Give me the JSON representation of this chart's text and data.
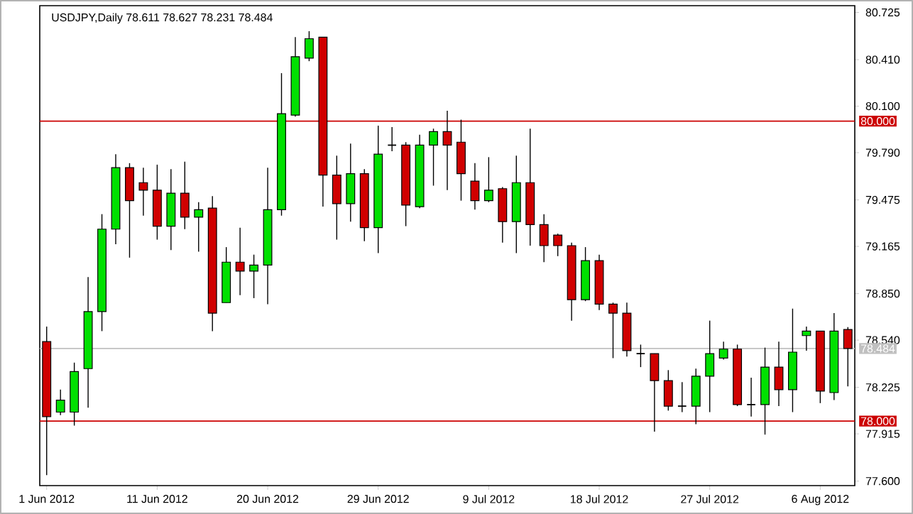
{
  "chart_data": {
    "type": "candlestick",
    "title": "USDJPY,Daily 78.611 78.627 78.231 78.484",
    "categories": [
      "1 Jun 2012",
      null,
      null,
      null,
      null,
      null,
      null,
      null,
      "11 Jun 2012",
      null,
      null,
      null,
      null,
      null,
      null,
      null,
      "20 Jun 2012",
      null,
      null,
      null,
      null,
      null,
      null,
      null,
      "29 Jun 2012",
      null,
      null,
      null,
      null,
      null,
      null,
      null,
      "9 Jul 2012",
      null,
      null,
      null,
      null,
      null,
      null,
      null,
      "18 Jul 2012",
      null,
      null,
      null,
      null,
      null,
      null,
      null,
      "27 Jul 2012",
      null,
      null,
      null,
      null,
      null,
      null,
      null,
      "6 Aug 2012",
      null,
      null
    ],
    "ohlc": [
      [
        78.53,
        78.63,
        77.64,
        78.03
      ],
      [
        78.06,
        78.21,
        78.04,
        78.14
      ],
      [
        78.06,
        78.39,
        77.97,
        78.33
      ],
      [
        78.35,
        78.96,
        78.09,
        78.73
      ],
      [
        78.73,
        79.38,
        78.6,
        79.28
      ],
      [
        79.28,
        79.78,
        79.18,
        79.69
      ],
      [
        79.69,
        79.72,
        79.09,
        79.47
      ],
      [
        79.59,
        79.69,
        79.37,
        79.54
      ],
      [
        79.54,
        79.71,
        79.21,
        79.3
      ],
      [
        79.3,
        79.68,
        79.14,
        79.52
      ],
      [
        79.52,
        79.73,
        79.28,
        79.36
      ],
      [
        79.36,
        79.46,
        79.13,
        79.41
      ],
      [
        79.42,
        79.5,
        78.6,
        78.72
      ],
      [
        78.79,
        79.16,
        78.79,
        79.06
      ],
      [
        79.06,
        79.29,
        78.84,
        79.0
      ],
      [
        79.0,
        79.11,
        78.82,
        79.04
      ],
      [
        79.04,
        79.69,
        78.78,
        79.41
      ],
      [
        79.41,
        80.32,
        79.37,
        80.05
      ],
      [
        80.04,
        80.56,
        80.03,
        80.43
      ],
      [
        80.42,
        80.6,
        80.4,
        80.55
      ],
      [
        80.56,
        80.56,
        79.43,
        79.64
      ],
      [
        79.64,
        79.77,
        79.21,
        79.45
      ],
      [
        79.45,
        79.85,
        79.33,
        79.65
      ],
      [
        79.65,
        79.68,
        79.2,
        79.29
      ],
      [
        79.29,
        79.97,
        79.12,
        79.78
      ],
      [
        79.84,
        79.96,
        79.8,
        79.84
      ],
      [
        79.84,
        79.86,
        79.3,
        79.44
      ],
      [
        79.43,
        79.91,
        79.42,
        79.84
      ],
      [
        79.84,
        79.95,
        79.57,
        79.93
      ],
      [
        79.93,
        80.07,
        79.54,
        79.84
      ],
      [
        79.86,
        80.01,
        79.47,
        79.65
      ],
      [
        79.6,
        79.72,
        79.41,
        79.47
      ],
      [
        79.47,
        79.76,
        79.46,
        79.54
      ],
      [
        79.55,
        79.56,
        79.19,
        79.33
      ],
      [
        79.33,
        79.77,
        79.12,
        79.59
      ],
      [
        79.59,
        79.95,
        79.17,
        79.31
      ],
      [
        79.31,
        79.38,
        79.06,
        79.17
      ],
      [
        79.24,
        79.25,
        79.1,
        79.17
      ],
      [
        79.17,
        79.19,
        78.67,
        78.81
      ],
      [
        78.81,
        79.16,
        78.8,
        79.07
      ],
      [
        79.07,
        79.11,
        78.74,
        78.78
      ],
      [
        78.78,
        78.79,
        78.42,
        78.72
      ],
      [
        78.72,
        78.79,
        78.43,
        78.47
      ],
      [
        78.45,
        78.51,
        78.36,
        78.45
      ],
      [
        78.45,
        78.45,
        77.93,
        78.27
      ],
      [
        78.27,
        78.34,
        78.07,
        78.1
      ],
      [
        78.1,
        78.26,
        78.06,
        78.1
      ],
      [
        78.1,
        78.35,
        77.98,
        78.3
      ],
      [
        78.3,
        78.67,
        78.06,
        78.45
      ],
      [
        78.42,
        78.53,
        78.41,
        78.48
      ],
      [
        78.48,
        78.51,
        78.1,
        78.11
      ],
      [
        78.11,
        78.29,
        78.03,
        78.11
      ],
      [
        78.11,
        78.49,
        77.91,
        78.36
      ],
      [
        78.36,
        78.53,
        78.1,
        78.21
      ],
      [
        78.21,
        78.75,
        78.06,
        78.46
      ],
      [
        78.57,
        78.63,
        78.47,
        78.6
      ],
      [
        78.6,
        78.6,
        78.12,
        78.2
      ],
      [
        78.19,
        78.72,
        78.14,
        78.6
      ],
      [
        78.611,
        78.627,
        78.231,
        78.484
      ]
    ],
    "colors": [
      "#d00000",
      "#00e000",
      "#00e000",
      "#00e000",
      "#00e000",
      "#00e000",
      "#d00000",
      "#d00000",
      "#d00000",
      "#00e000",
      "#d00000",
      "#00e000",
      "#d00000",
      "#00e000",
      "#d00000",
      "#00e000",
      "#00e000",
      "#00e000",
      "#00e000",
      "#00e000",
      "#d00000",
      "#d00000",
      "#00e000",
      "#d00000",
      "#00e000",
      "#000000",
      "#d00000",
      "#00e000",
      "#00e000",
      "#d00000",
      "#d00000",
      "#d00000",
      "#00e000",
      "#d00000",
      "#00e000",
      "#d00000",
      "#d00000",
      "#d00000",
      "#d00000",
      "#00e000",
      "#d00000",
      "#d00000",
      "#d00000",
      "#000000",
      "#d00000",
      "#d00000",
      "#000000",
      "#00e000",
      "#00e000",
      "#00e000",
      "#d00000",
      "#000000",
      "#00e000",
      "#d00000",
      "#00e000",
      "#00e000",
      "#d00000",
      "#00e000",
      "#d00000"
    ],
    "ylim": [
      77.57,
      80.77
    ],
    "yticks": [
      {
        "value": 77.6,
        "label": "77.600"
      },
      {
        "value": 77.915,
        "label": "77.915"
      },
      {
        "value": 78.225,
        "label": "78.225"
      },
      {
        "value": 78.54,
        "label": "78.540"
      },
      {
        "value": 78.85,
        "label": "78.850"
      },
      {
        "value": 79.165,
        "label": "79.165"
      },
      {
        "value": 79.475,
        "label": "79.475"
      },
      {
        "value": 79.79,
        "label": "79.790"
      },
      {
        "value": 80.1,
        "label": "80.100"
      },
      {
        "value": 80.41,
        "label": "80.410"
      },
      {
        "value": 80.725,
        "label": "80.725"
      }
    ],
    "ref_lines": [
      {
        "axis": "y",
        "value": 80.0,
        "label": "80.000",
        "color": "#cc0000"
      },
      {
        "axis": "y",
        "value": 78.0,
        "label": "78.000",
        "color": "#cc0000"
      },
      {
        "axis": "y",
        "value": 78.484,
        "label": "78.484",
        "color": "#c0c0c0"
      }
    ],
    "grid": false
  }
}
